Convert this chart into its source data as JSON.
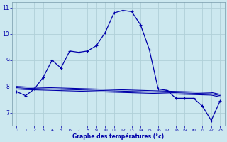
{
  "xlabel": "Graphe des températures (°c)",
  "background_color": "#cce8ef",
  "grid_color": "#b0d0d8",
  "line_color": "#0000aa",
  "xlim": [
    -0.5,
    23.5
  ],
  "ylim": [
    6.5,
    11.2
  ],
  "yticks": [
    7,
    8,
    9,
    10,
    11
  ],
  "ytick_labels": [
    "7",
    "8",
    "9",
    "10",
    "11"
  ],
  "xticks": [
    0,
    1,
    2,
    3,
    4,
    5,
    6,
    7,
    8,
    9,
    10,
    11,
    12,
    13,
    14,
    15,
    16,
    17,
    18,
    19,
    20,
    21,
    22,
    23
  ],
  "series": {
    "main": {
      "x": [
        0,
        1,
        2,
        3,
        4,
        5,
        6,
        7,
        8,
        9,
        10,
        11,
        12,
        13,
        14,
        15,
        16,
        17,
        18,
        19,
        20,
        21,
        22,
        23
      ],
      "y": [
        7.8,
        7.65,
        7.9,
        8.35,
        9.0,
        8.7,
        9.35,
        9.3,
        9.35,
        9.55,
        10.05,
        10.8,
        10.9,
        10.85,
        10.35,
        9.4,
        7.9,
        7.85,
        7.55,
        7.55,
        7.55,
        7.25,
        6.7,
        7.45
      ]
    },
    "line1": {
      "x": [
        0,
        1,
        2,
        3,
        4,
        5,
        6,
        7,
        8,
        9,
        10,
        11,
        12,
        13,
        14,
        15,
        16,
        17,
        18,
        19,
        20,
        21,
        22,
        23
      ],
      "y": [
        7.9,
        7.88,
        7.87,
        7.86,
        7.85,
        7.84,
        7.83,
        7.82,
        7.81,
        7.8,
        7.79,
        7.78,
        7.77,
        7.76,
        7.75,
        7.74,
        7.73,
        7.72,
        7.71,
        7.7,
        7.69,
        7.68,
        7.67,
        7.6
      ]
    },
    "line2": {
      "x": [
        0,
        1,
        2,
        3,
        4,
        5,
        6,
        7,
        8,
        9,
        10,
        11,
        12,
        13,
        14,
        15,
        16,
        17,
        18,
        19,
        20,
        21,
        22,
        23
      ],
      "y": [
        7.95,
        7.93,
        7.92,
        7.91,
        7.9,
        7.89,
        7.88,
        7.87,
        7.86,
        7.85,
        7.84,
        7.83,
        7.82,
        7.81,
        7.8,
        7.79,
        7.78,
        7.77,
        7.76,
        7.75,
        7.74,
        7.73,
        7.72,
        7.65
      ]
    },
    "line3": {
      "x": [
        0,
        1,
        2,
        3,
        4,
        5,
        6,
        7,
        8,
        9,
        10,
        11,
        12,
        13,
        14,
        15,
        16,
        17,
        18,
        19,
        20,
        21,
        22,
        23
      ],
      "y": [
        8.0,
        7.98,
        7.97,
        7.96,
        7.95,
        7.94,
        7.93,
        7.92,
        7.91,
        7.9,
        7.89,
        7.88,
        7.87,
        7.86,
        7.85,
        7.84,
        7.83,
        7.82,
        7.81,
        7.8,
        7.79,
        7.78,
        7.77,
        7.7
      ]
    }
  }
}
